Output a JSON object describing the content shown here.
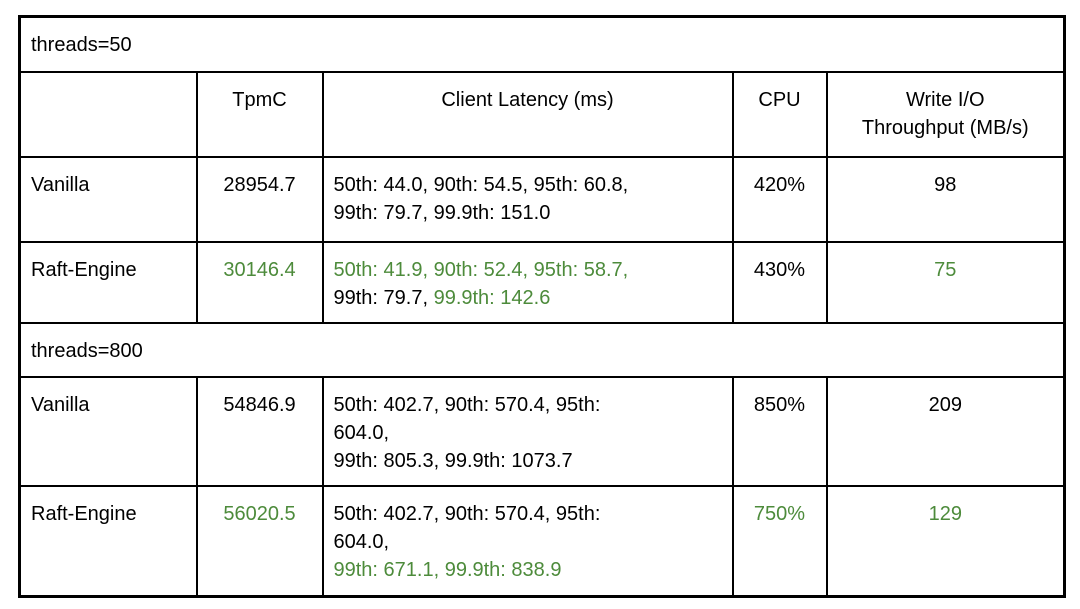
{
  "colors": {
    "black": "#000000",
    "green": "#4d8b3b",
    "border": "#000000",
    "background": "#ffffff"
  },
  "table": {
    "columns": [
      "",
      "TpmC",
      "Client Latency (ms)",
      "CPU",
      "Write I/O\nThroughput (MB/s)"
    ],
    "column_names": [
      "column-header-empty",
      "column-header-tpmc",
      "column-header-client-latency",
      "column-header-cpu",
      "column-header-write-io-throughput"
    ],
    "rows": [
      {
        "type": "group",
        "label": "threads=50"
      },
      {
        "type": "header"
      },
      {
        "type": "data",
        "name": "Vanilla",
        "tpmc": {
          "text": "28954.7",
          "color": "black"
        },
        "latency_lines": [
          [
            {
              "text": "50th: 44.0, 90th: 54.5, 95th: 60.8,",
              "color": "black"
            }
          ],
          [
            {
              "text": "99th: 79.7, 99.9th: 151.0",
              "color": "black"
            }
          ]
        ],
        "cpu": {
          "text": "420%",
          "color": "black"
        },
        "write_io": {
          "text": "98",
          "color": "black"
        }
      },
      {
        "type": "data",
        "name": "Raft-Engine",
        "tpmc": {
          "text": "30146.4",
          "color": "green"
        },
        "latency_lines": [
          [
            {
              "text": "50th: 41.9, 90th: 52.4, 95th: 58.7,",
              "color": "green"
            }
          ],
          [
            {
              "text": "99th: 79.7, ",
              "color": "black"
            },
            {
              "text": "99.9th: 142.6",
              "color": "green"
            }
          ]
        ],
        "cpu": {
          "text": "430%",
          "color": "black"
        },
        "write_io": {
          "text": "75",
          "color": "green"
        }
      },
      {
        "type": "group",
        "label": "threads=800"
      },
      {
        "type": "data",
        "name": "Vanilla",
        "tpmc": {
          "text": "54846.9",
          "color": "black"
        },
        "latency_lines": [
          [
            {
              "text": "50th: 402.7, 90th: 570.4, 95th:",
              "color": "black"
            }
          ],
          [
            {
              "text": "604.0,",
              "color": "black"
            }
          ],
          [
            {
              "text": "99th: 805.3, 99.9th: 1073.7",
              "color": "black"
            }
          ]
        ],
        "cpu": {
          "text": "850%",
          "color": "black"
        },
        "write_io": {
          "text": "209",
          "color": "black"
        }
      },
      {
        "type": "data",
        "name": "Raft-Engine",
        "tpmc": {
          "text": "56020.5",
          "color": "green"
        },
        "latency_lines": [
          [
            {
              "text": "50th: 402.7, 90th: 570.4, 95th:",
              "color": "black"
            }
          ],
          [
            {
              "text": "604.0,",
              "color": "black"
            }
          ],
          [
            {
              "text": "99th: 671.1, 99.9th: 838.9",
              "color": "green"
            }
          ]
        ],
        "cpu": {
          "text": "750%",
          "color": "green"
        },
        "write_io": {
          "text": "129",
          "color": "green"
        }
      }
    ]
  }
}
